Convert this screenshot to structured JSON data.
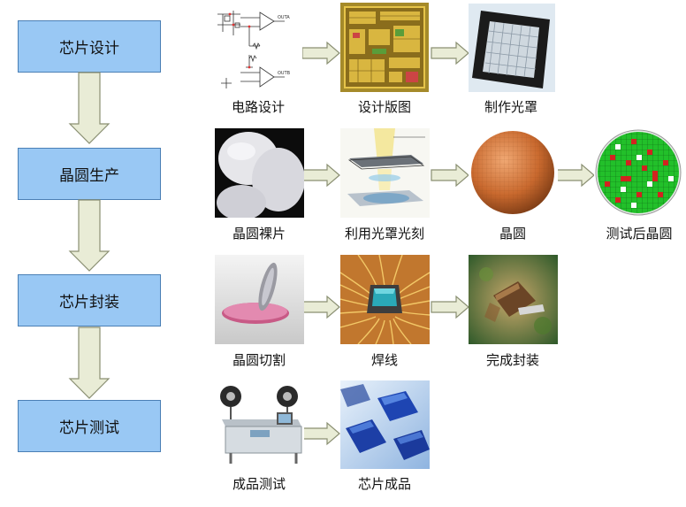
{
  "stages": [
    {
      "label": "芯片设计"
    },
    {
      "label": "晶圆生产"
    },
    {
      "label": "芯片封装"
    },
    {
      "label": "芯片测试"
    }
  ],
  "steps": {
    "circuit_design": "电路设计",
    "layout_design": "设计版图",
    "make_mask": "制作光罩",
    "bare_wafer": "晶圆裸片",
    "lithography": "利用光罩光刻",
    "wafer": "晶圆",
    "tested_wafer": "测试后晶圆",
    "wafer_dicing": "晶圆切割",
    "wire_bonding": "焊线",
    "packaged": "完成封装",
    "product_test": "成品测试",
    "finished_chip": "芯片成品"
  },
  "schematic_labels": {
    "out_a": "OUTA",
    "out_b": "OUTB"
  },
  "colors": {
    "stage_fill": "#99c8f4",
    "stage_border": "#4a7fb5",
    "arrow_fill": "#e9ecd6",
    "arrow_stroke": "#8a8f72"
  }
}
